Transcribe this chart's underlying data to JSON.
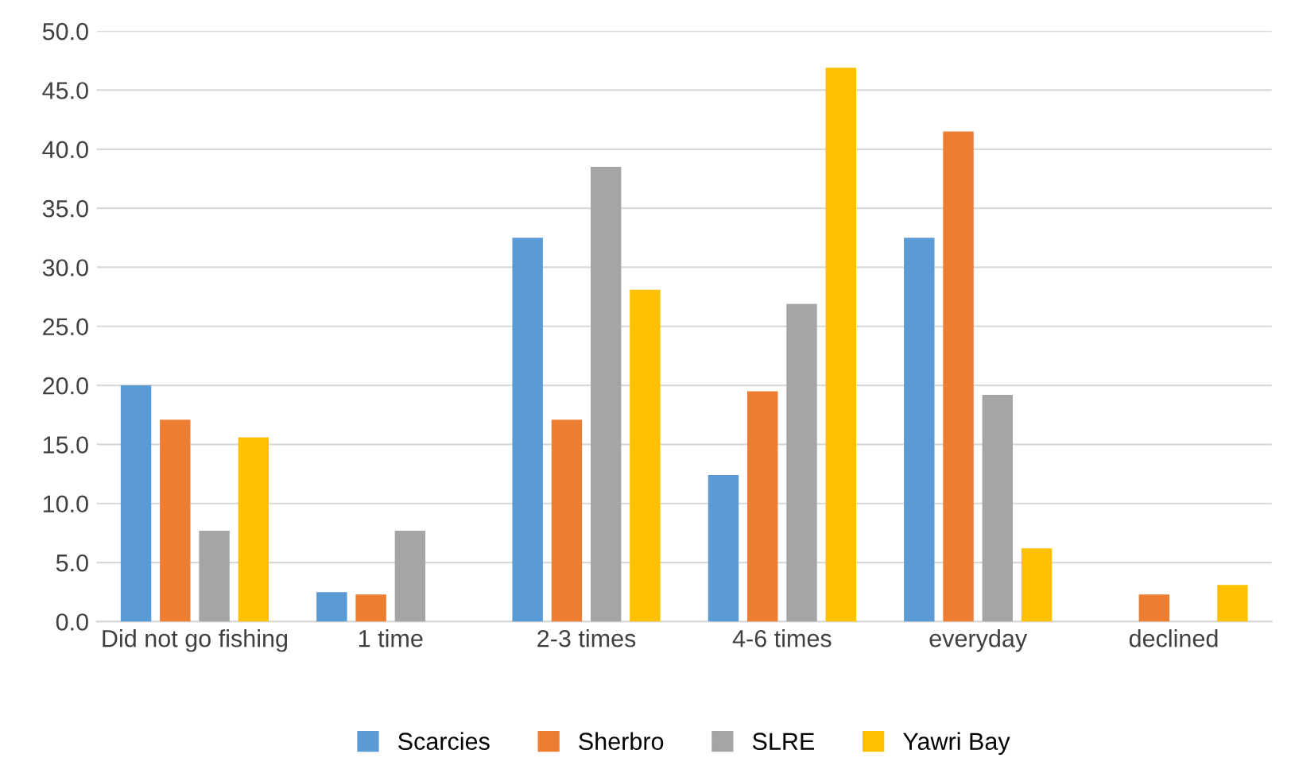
{
  "chart_data": {
    "type": "bar",
    "categories": [
      "Did not go fishing",
      "1 time",
      "2-3 times",
      "4-6 times",
      "everyday",
      "declined"
    ],
    "series": [
      {
        "name": "Scarcies",
        "color": "#5b9bd5",
        "values": [
          20.0,
          2.5,
          32.5,
          12.4,
          32.5,
          0
        ]
      },
      {
        "name": "Sherbro",
        "color": "#ed7d31",
        "values": [
          17.1,
          2.3,
          17.1,
          19.5,
          41.5,
          2.3
        ]
      },
      {
        "name": "SLRE",
        "color": "#a5a5a5",
        "values": [
          7.7,
          7.7,
          38.5,
          26.9,
          19.2,
          0
        ]
      },
      {
        "name": "Yawri Bay",
        "color": "#ffc000",
        "values": [
          15.6,
          0,
          28.1,
          46.9,
          6.2,
          3.1
        ]
      }
    ],
    "ylim": [
      0,
      50
    ],
    "yticks": [
      {
        "value": 0,
        "label": "0.0"
      },
      {
        "value": 5,
        "label": "5.0"
      },
      {
        "value": 10,
        "label": "10.0"
      },
      {
        "value": 15,
        "label": "15.0"
      },
      {
        "value": 20,
        "label": "20.0"
      },
      {
        "value": 25,
        "label": "25.0"
      },
      {
        "value": 30,
        "label": "30.0"
      },
      {
        "value": 35,
        "label": "35.0"
      },
      {
        "value": 40,
        "label": "40.0"
      },
      {
        "value": 45,
        "label": "45.0"
      },
      {
        "value": 50,
        "label": "50.0"
      }
    ],
    "grid": "y",
    "legend": "bottom"
  }
}
